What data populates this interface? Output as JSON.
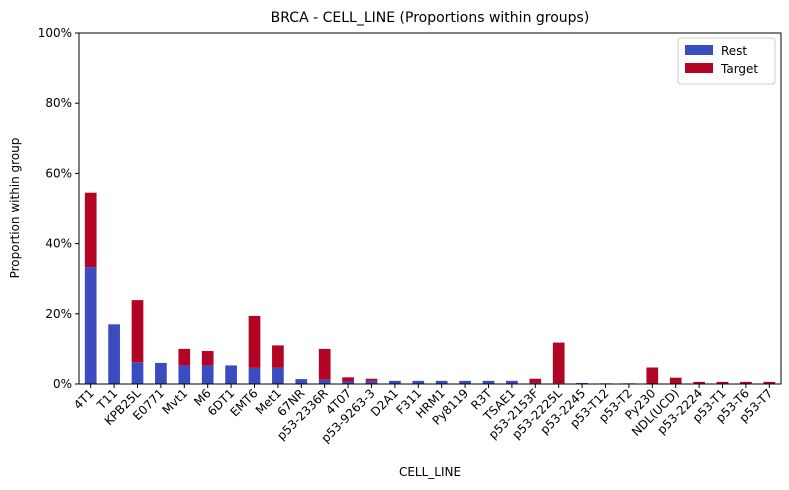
{
  "chart_data": {
    "type": "bar",
    "stacked": true,
    "title": "BRCA - CELL_LINE (Proportions within groups)",
    "xlabel": "CELL_LINE",
    "ylabel": "Proportion within group",
    "ylim": [
      0,
      1
    ],
    "y_ticks": [
      "0%",
      "20%",
      "40%",
      "60%",
      "80%",
      "100%"
    ],
    "legend_position": "top-right",
    "grid": false,
    "categories": [
      "4T1",
      "T11",
      "KPB25L",
      "E0771",
      "Mvt1",
      "M6",
      "6DT1",
      "EMT6",
      "Met1",
      "67NR",
      "p53-2336R",
      "4T07",
      "p53-9263-3",
      "D2A1",
      "F311",
      "HRM1",
      "Py8119",
      "R3T",
      "TSAE1",
      "p53-2153F",
      "p53-2225L",
      "p53-2245",
      "p53-T12",
      "p53-T2",
      "Py230",
      "NDL(UCD)",
      "p53-2224",
      "p53-T1",
      "p53-T6",
      "p53-T7"
    ],
    "series": [
      {
        "name": "Rest",
        "color": "#3b4cc0",
        "values": [
          0.333,
          0.17,
          0.062,
          0.06,
          0.053,
          0.053,
          0.053,
          0.046,
          0.046,
          0.014,
          0.012,
          0.007,
          0.009,
          0.009,
          0.009,
          0.009,
          0.009,
          0.009,
          0.009,
          0.003,
          0.002,
          0.003,
          0.002,
          0.002,
          0.0,
          0.0,
          0.0,
          0.0,
          0.0,
          0.0
        ]
      },
      {
        "name": "Target",
        "color": "#b40426",
        "values": [
          0.212,
          0.0,
          0.177,
          0.0,
          0.047,
          0.041,
          0.0,
          0.148,
          0.064,
          0.0,
          0.088,
          0.012,
          0.006,
          0.0,
          0.0,
          0.0,
          0.0,
          0.0,
          0.0,
          0.012,
          0.116,
          0.0,
          0.0,
          0.0,
          0.047,
          0.018,
          0.006,
          0.006,
          0.006,
          0.006
        ]
      }
    ]
  }
}
